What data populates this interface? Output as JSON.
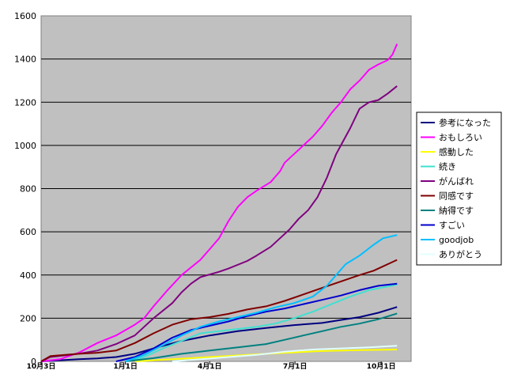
{
  "chart_data": {
    "type": "line",
    "title": "",
    "xlabel": "",
    "ylabel": "",
    "ylim": [
      0,
      1600
    ],
    "yticks": [
      0,
      200,
      400,
      600,
      800,
      1000,
      1200,
      1400,
      1600
    ],
    "xlim": [
      0,
      395
    ],
    "xticks": [
      {
        "label": "10月3日",
        "day": 0
      },
      {
        "label": "1月1日",
        "day": 90
      },
      {
        "label": "4月1日",
        "day": 180
      },
      {
        "label": "7月1日",
        "day": 271
      },
      {
        "label": "10月1日",
        "day": 363
      }
    ],
    "grid": "horizontal",
    "plot_background": "#c0c0c0",
    "legend_position": "right",
    "series": [
      {
        "name": "参考になった",
        "color": "#000080",
        "points": [
          [
            0,
            0
          ],
          [
            20,
            5
          ],
          [
            40,
            10
          ],
          [
            60,
            14
          ],
          [
            80,
            20
          ],
          [
            100,
            35
          ],
          [
            120,
            60
          ],
          [
            150,
            95
          ],
          [
            180,
            120
          ],
          [
            210,
            140
          ],
          [
            240,
            155
          ],
          [
            270,
            168
          ],
          [
            300,
            178
          ],
          [
            320,
            192
          ],
          [
            340,
            205
          ],
          [
            360,
            225
          ],
          [
            375,
            245
          ],
          [
            380,
            252
          ]
        ]
      },
      {
        "name": "おもしろい",
        "color": "#ff00ff",
        "points": [
          [
            0,
            0
          ],
          [
            20,
            10
          ],
          [
            40,
            40
          ],
          [
            60,
            85
          ],
          [
            80,
            120
          ],
          [
            100,
            170
          ],
          [
            110,
            200
          ],
          [
            120,
            255
          ],
          [
            135,
            330
          ],
          [
            150,
            400
          ],
          [
            170,
            470
          ],
          [
            180,
            520
          ],
          [
            190,
            570
          ],
          [
            200,
            650
          ],
          [
            210,
            715
          ],
          [
            220,
            760
          ],
          [
            230,
            790
          ],
          [
            245,
            830
          ],
          [
            255,
            880
          ],
          [
            260,
            920
          ],
          [
            270,
            960
          ],
          [
            280,
            1000
          ],
          [
            290,
            1040
          ],
          [
            300,
            1090
          ],
          [
            310,
            1150
          ],
          [
            320,
            1200
          ],
          [
            330,
            1260
          ],
          [
            340,
            1300
          ],
          [
            350,
            1350
          ],
          [
            360,
            1375
          ],
          [
            370,
            1395
          ],
          [
            375,
            1420
          ],
          [
            380,
            1470
          ]
        ]
      },
      {
        "name": "感動した",
        "color": "#ffff00",
        "points": [
          [
            100,
            0
          ],
          [
            140,
            10
          ],
          [
            180,
            20
          ],
          [
            220,
            30
          ],
          [
            260,
            40
          ],
          [
            300,
            48
          ],
          [
            340,
            52
          ],
          [
            380,
            55
          ]
        ]
      },
      {
        "name": "続き",
        "color": "#40e0d0",
        "points": [
          [
            90,
            0
          ],
          [
            110,
            20
          ],
          [
            130,
            60
          ],
          [
            150,
            95
          ],
          [
            170,
            130
          ],
          [
            190,
            140
          ],
          [
            210,
            150
          ],
          [
            230,
            160
          ],
          [
            250,
            175
          ],
          [
            270,
            200
          ],
          [
            290,
            230
          ],
          [
            310,
            265
          ],
          [
            330,
            300
          ],
          [
            350,
            330
          ],
          [
            380,
            355
          ]
        ]
      },
      {
        "name": "がんばれ",
        "color": "#800080",
        "points": [
          [
            0,
            0
          ],
          [
            10,
            20
          ],
          [
            40,
            35
          ],
          [
            60,
            50
          ],
          [
            80,
            80
          ],
          [
            100,
            120
          ],
          [
            110,
            160
          ],
          [
            120,
            200
          ],
          [
            140,
            270
          ],
          [
            150,
            320
          ],
          [
            160,
            360
          ],
          [
            170,
            390
          ],
          [
            190,
            415
          ],
          [
            200,
            430
          ],
          [
            220,
            465
          ],
          [
            230,
            490
          ],
          [
            245,
            530
          ],
          [
            255,
            570
          ],
          [
            265,
            610
          ],
          [
            275,
            660
          ],
          [
            285,
            700
          ],
          [
            295,
            760
          ],
          [
            305,
            850
          ],
          [
            315,
            960
          ],
          [
            320,
            1000
          ],
          [
            330,
            1080
          ],
          [
            340,
            1170
          ],
          [
            350,
            1200
          ],
          [
            360,
            1210
          ],
          [
            370,
            1240
          ],
          [
            380,
            1275
          ]
        ]
      },
      {
        "name": "同感です",
        "color": "#800000",
        "points": [
          [
            0,
            0
          ],
          [
            10,
            25
          ],
          [
            40,
            35
          ],
          [
            60,
            40
          ],
          [
            80,
            50
          ],
          [
            100,
            85
          ],
          [
            120,
            130
          ],
          [
            140,
            170
          ],
          [
            160,
            195
          ],
          [
            180,
            205
          ],
          [
            200,
            220
          ],
          [
            220,
            240
          ],
          [
            240,
            255
          ],
          [
            260,
            280
          ],
          [
            280,
            310
          ],
          [
            300,
            340
          ],
          [
            320,
            370
          ],
          [
            340,
            400
          ],
          [
            355,
            420
          ],
          [
            365,
            440
          ],
          [
            375,
            460
          ],
          [
            380,
            470
          ]
        ]
      },
      {
        "name": "納得です",
        "color": "#008080",
        "points": [
          [
            90,
            0
          ],
          [
            120,
            15
          ],
          [
            150,
            35
          ],
          [
            180,
            50
          ],
          [
            210,
            65
          ],
          [
            240,
            80
          ],
          [
            260,
            100
          ],
          [
            280,
            120
          ],
          [
            300,
            140
          ],
          [
            320,
            160
          ],
          [
            340,
            175
          ],
          [
            360,
            195
          ],
          [
            380,
            222
          ]
        ]
      },
      {
        "name": "すごい",
        "color": "#0000cd",
        "points": [
          [
            80,
            0
          ],
          [
            100,
            20
          ],
          [
            120,
            60
          ],
          [
            140,
            110
          ],
          [
            160,
            145
          ],
          [
            180,
            165
          ],
          [
            200,
            185
          ],
          [
            220,
            210
          ],
          [
            240,
            230
          ],
          [
            260,
            245
          ],
          [
            280,
            265
          ],
          [
            300,
            285
          ],
          [
            320,
            305
          ],
          [
            340,
            330
          ],
          [
            360,
            350
          ],
          [
            380,
            360
          ]
        ]
      },
      {
        "name": "goodjob",
        "color": "#00bfff",
        "points": [
          [
            90,
            0
          ],
          [
            110,
            30
          ],
          [
            130,
            75
          ],
          [
            150,
            120
          ],
          [
            170,
            160
          ],
          [
            190,
            185
          ],
          [
            210,
            205
          ],
          [
            230,
            225
          ],
          [
            250,
            250
          ],
          [
            270,
            270
          ],
          [
            290,
            300
          ],
          [
            305,
            350
          ],
          [
            315,
            400
          ],
          [
            325,
            450
          ],
          [
            340,
            490
          ],
          [
            355,
            540
          ],
          [
            365,
            570
          ],
          [
            380,
            585
          ]
        ]
      },
      {
        "name": "ありがとう",
        "color": "#e0ffff",
        "points": [
          [
            140,
            0
          ],
          [
            170,
            10
          ],
          [
            200,
            20
          ],
          [
            230,
            30
          ],
          [
            260,
            45
          ],
          [
            290,
            55
          ],
          [
            320,
            60
          ],
          [
            350,
            65
          ],
          [
            380,
            72
          ]
        ]
      }
    ]
  }
}
